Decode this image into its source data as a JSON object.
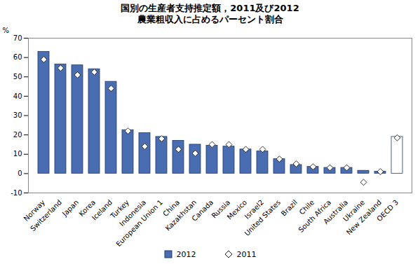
{
  "chart_data": {
    "type": "bar",
    "title": "国別の生産者支持推定額，2011及び2012",
    "subtitle": "農業粗収入に占めるパーセント割合",
    "y_label": "%",
    "categories": [
      "Norway",
      "Switzerland",
      "Japan",
      "Korea",
      "Iceland",
      "Turkey",
      "Indonesia",
      "European Union 1",
      "China",
      "Kazakhstan",
      "Canada",
      "Russia",
      "Mexico",
      "Israel2",
      "United States",
      "Brazil",
      "Chile",
      "South Africa",
      "Australia",
      "Ukraine",
      "New Zealand",
      "OECD 3"
    ],
    "series": [
      {
        "name": "2012",
        "type": "bar",
        "color": "#4a6cb0",
        "colors": [
          "#4a6cb0",
          "#4a6cb0",
          "#4a6cb0",
          "#4a6cb0",
          "#4a6cb0",
          "#4a6cb0",
          "#4a6cb0",
          "#4a6cb0",
          "#4a6cb0",
          "#4a6cb0",
          "#4a6cb0",
          "#4a6cb0",
          "#4a6cb0",
          "#4a6cb0",
          "#4a6cb0",
          "#4a6cb0",
          "#4a6cb0",
          "#4a6cb0",
          "#4a6cb0",
          "#4a6cb0",
          "#4a6cb0",
          "#ffffff"
        ],
        "values": [
          63,
          56.5,
          56,
          54,
          47.5,
          22.5,
          21,
          19,
          17,
          15,
          14.5,
          14,
          12.5,
          11.5,
          7.5,
          4.5,
          3.5,
          3,
          3,
          1.5,
          1,
          19
        ]
      },
      {
        "name": "2011",
        "type": "scatter",
        "marker": "diamond",
        "color": "#ffffff",
        "values": [
          59,
          54.5,
          51,
          52.5,
          44,
          22,
          14,
          18,
          12.5,
          10.5,
          15,
          15,
          12.5,
          12.5,
          7.5,
          5,
          3.5,
          3,
          3,
          -4.5,
          1,
          18.5
        ]
      }
    ],
    "ylim": [
      -10,
      70
    ],
    "yticks": [
      -10,
      0,
      10,
      20,
      30,
      40,
      50,
      60,
      70
    ],
    "grid": false,
    "legend": "bottom"
  }
}
